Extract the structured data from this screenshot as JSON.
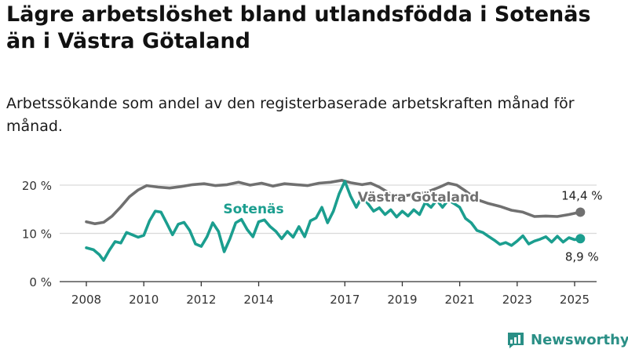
{
  "title": "Lägre arbetslöshet bland utlandsfödda i Sotenäs än i Västra Götaland",
  "subtitle": "Arbetssökande som andel av den registerbaserade arbetskraften månad för månad.",
  "brand": "Newsworthy",
  "colors": {
    "vg": "#707070",
    "sotenas": "#1b9e8f",
    "grid": "#d9d9d9",
    "axis": "#333333",
    "brand": "#2a8f86"
  },
  "chart_data": {
    "type": "line",
    "title": "Lägre arbetslöshet bland utlandsfödda i Sotenäs än i Västra Götaland",
    "subtitle": "Arbetssökande som andel av den registerbaserade arbetskraften månad för månad.",
    "xlabel": "",
    "ylabel": "",
    "xlim": [
      2008,
      2025.4
    ],
    "ylim": [
      0,
      22
    ],
    "y_ticks": [
      0,
      10,
      20
    ],
    "y_tick_labels": [
      "0 %",
      "10 %",
      "20 %"
    ],
    "x_ticks": [
      2008,
      2010,
      2012,
      2014,
      2017,
      2019,
      2021,
      2023,
      2025
    ],
    "x_tick_labels": [
      "2008",
      "2010",
      "2012",
      "2014",
      "2017",
      "2019",
      "2021",
      "2023",
      "2025"
    ],
    "grid": true,
    "legend": "inline labels",
    "series": [
      {
        "name": "Västra Götaland",
        "label": "Västra Götaland",
        "color": "#707070",
        "end_label": "14,4 %",
        "points": [
          [
            2008.0,
            12.4
          ],
          [
            2008.3,
            12.0
          ],
          [
            2008.6,
            12.3
          ],
          [
            2008.9,
            13.6
          ],
          [
            2009.2,
            15.5
          ],
          [
            2009.5,
            17.6
          ],
          [
            2009.8,
            19.0
          ],
          [
            2010.1,
            19.9
          ],
          [
            2010.5,
            19.6
          ],
          [
            2010.9,
            19.4
          ],
          [
            2011.3,
            19.7
          ],
          [
            2011.7,
            20.1
          ],
          [
            2012.1,
            20.3
          ],
          [
            2012.5,
            19.9
          ],
          [
            2012.9,
            20.1
          ],
          [
            2013.3,
            20.6
          ],
          [
            2013.7,
            20.0
          ],
          [
            2014.1,
            20.4
          ],
          [
            2014.5,
            19.8
          ],
          [
            2014.9,
            20.3
          ],
          [
            2015.3,
            20.1
          ],
          [
            2015.7,
            19.9
          ],
          [
            2016.1,
            20.4
          ],
          [
            2016.5,
            20.6
          ],
          [
            2016.9,
            21.0
          ],
          [
            2017.2,
            20.5
          ],
          [
            2017.6,
            20.1
          ],
          [
            2017.9,
            20.4
          ],
          [
            2018.2,
            19.6
          ],
          [
            2018.5,
            18.5
          ],
          [
            2018.8,
            17.4
          ],
          [
            2019.2,
            17.9
          ],
          [
            2019.6,
            18.2
          ],
          [
            2020.0,
            18.9
          ],
          [
            2020.3,
            19.6
          ],
          [
            2020.6,
            20.4
          ],
          [
            2020.9,
            20.0
          ],
          [
            2021.2,
            18.8
          ],
          [
            2021.6,
            17.0
          ],
          [
            2022.0,
            16.2
          ],
          [
            2022.4,
            15.6
          ],
          [
            2022.8,
            14.8
          ],
          [
            2023.2,
            14.4
          ],
          [
            2023.6,
            13.5
          ],
          [
            2024.0,
            13.6
          ],
          [
            2024.4,
            13.5
          ],
          [
            2024.8,
            13.9
          ],
          [
            2025.2,
            14.4
          ]
        ]
      },
      {
        "name": "Sotenäs",
        "label": "Sotenäs",
        "color": "#1b9e8f",
        "end_label": "8,9 %",
        "points": [
          [
            2008.0,
            7.0
          ],
          [
            2008.25,
            6.6
          ],
          [
            2008.45,
            5.6
          ],
          [
            2008.6,
            4.4
          ],
          [
            2008.8,
            6.5
          ],
          [
            2009.0,
            8.3
          ],
          [
            2009.2,
            8.0
          ],
          [
            2009.4,
            10.2
          ],
          [
            2009.6,
            9.7
          ],
          [
            2009.8,
            9.2
          ],
          [
            2010.0,
            9.6
          ],
          [
            2010.2,
            12.6
          ],
          [
            2010.4,
            14.6
          ],
          [
            2010.6,
            14.4
          ],
          [
            2010.8,
            12.1
          ],
          [
            2011.0,
            9.7
          ],
          [
            2011.2,
            11.9
          ],
          [
            2011.4,
            12.3
          ],
          [
            2011.6,
            10.6
          ],
          [
            2011.8,
            7.8
          ],
          [
            2012.0,
            7.3
          ],
          [
            2012.2,
            9.3
          ],
          [
            2012.4,
            12.2
          ],
          [
            2012.6,
            10.4
          ],
          [
            2012.8,
            6.2
          ],
          [
            2013.0,
            8.9
          ],
          [
            2013.2,
            12.2
          ],
          [
            2013.4,
            12.9
          ],
          [
            2013.6,
            10.8
          ],
          [
            2013.8,
            9.3
          ],
          [
            2014.0,
            12.4
          ],
          [
            2014.2,
            12.8
          ],
          [
            2014.4,
            11.4
          ],
          [
            2014.6,
            10.4
          ],
          [
            2014.8,
            8.9
          ],
          [
            2015.0,
            10.4
          ],
          [
            2015.2,
            9.2
          ],
          [
            2015.4,
            11.4
          ],
          [
            2015.6,
            9.3
          ],
          [
            2015.8,
            12.6
          ],
          [
            2016.0,
            13.2
          ],
          [
            2016.2,
            15.4
          ],
          [
            2016.4,
            12.2
          ],
          [
            2016.6,
            14.6
          ],
          [
            2016.8,
            18.2
          ],
          [
            2017.0,
            20.8
          ],
          [
            2017.2,
            17.7
          ],
          [
            2017.4,
            15.4
          ],
          [
            2017.6,
            17.6
          ],
          [
            2017.8,
            16.2
          ],
          [
            2018.0,
            14.6
          ],
          [
            2018.2,
            15.3
          ],
          [
            2018.4,
            13.9
          ],
          [
            2018.6,
            14.9
          ],
          [
            2018.8,
            13.4
          ],
          [
            2019.0,
            14.6
          ],
          [
            2019.2,
            13.6
          ],
          [
            2019.4,
            14.9
          ],
          [
            2019.6,
            13.9
          ],
          [
            2019.8,
            16.4
          ],
          [
            2020.0,
            15.4
          ],
          [
            2020.2,
            16.9
          ],
          [
            2020.4,
            15.4
          ],
          [
            2020.6,
            16.9
          ],
          [
            2020.8,
            16.2
          ],
          [
            2021.0,
            15.4
          ],
          [
            2021.2,
            13.1
          ],
          [
            2021.4,
            12.2
          ],
          [
            2021.6,
            10.6
          ],
          [
            2021.8,
            10.2
          ],
          [
            2022.0,
            9.4
          ],
          [
            2022.2,
            8.6
          ],
          [
            2022.4,
            7.7
          ],
          [
            2022.6,
            8.1
          ],
          [
            2022.8,
            7.5
          ],
          [
            2023.0,
            8.4
          ],
          [
            2023.2,
            9.5
          ],
          [
            2023.4,
            7.8
          ],
          [
            2023.6,
            8.4
          ],
          [
            2023.8,
            8.8
          ],
          [
            2024.0,
            9.3
          ],
          [
            2024.2,
            8.2
          ],
          [
            2024.4,
            9.4
          ],
          [
            2024.6,
            8.2
          ],
          [
            2024.8,
            9.1
          ],
          [
            2025.0,
            8.7
          ],
          [
            2025.2,
            8.9
          ]
        ]
      }
    ]
  }
}
